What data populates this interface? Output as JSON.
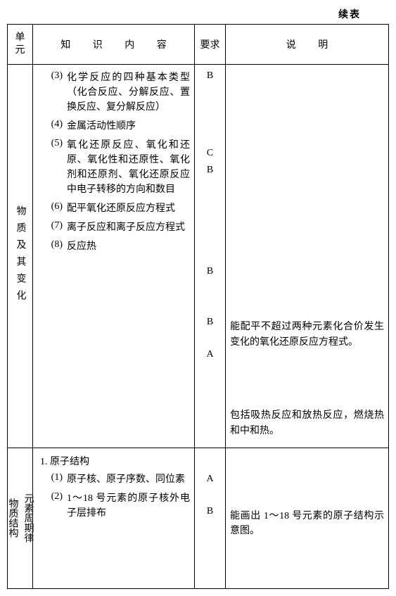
{
  "continuation_label": "续表",
  "columns": {
    "unit": "单元",
    "content": "知 识 内 容",
    "requirement": "要求",
    "note": "说 明"
  },
  "unit1": {
    "name": "物质及其变化",
    "items": [
      {
        "num": "(3)",
        "text": "化学反应的四种基本类型（化合反应、分解反应、置换反应、复分解反应）",
        "req": "B",
        "note": ""
      },
      {
        "num": "(4)",
        "text": "金属活动性顺序",
        "req": "C",
        "note": ""
      },
      {
        "num": "(5)",
        "text": "氧化还原反应、氧化和还原、氧化性和还原性、氧化剂和还原剂、氧化还原反应中电子转移的方向和数目",
        "req": "B",
        "note": ""
      },
      {
        "num": "(6)",
        "text": "配平氧化还原反应方程式",
        "req": "B",
        "note": "能配平不超过两种元素化合价发生变化的氧化还原反应方程式。"
      },
      {
        "num": "(7)",
        "text": "离子反应和离子反应方程式",
        "req": "B",
        "note": ""
      },
      {
        "num": "(8)",
        "text": "反应热",
        "req": "A",
        "note": "包括吸热反应和放热反应，燃烧热和中和热。"
      }
    ],
    "req_heights": [
      110,
      24,
      144,
      72,
      46,
      20
    ],
    "note_heights": [
      350,
      72,
      46,
      40
    ]
  },
  "unit2": {
    "name_outer": "物质结构",
    "name_inner": "元素周期律",
    "section": "1. 原子结构",
    "items": [
      {
        "num": "(1)",
        "text": "原子核、原子序数、同位素",
        "req": "A",
        "note": ""
      },
      {
        "num": "(2)",
        "text": "1～18 号元素的原子核外电子层排布",
        "req": "B",
        "note": "能画出 1～18 号元素的原子结构示意图。"
      }
    ],
    "req_heights": [
      28,
      46,
      60
    ],
    "note_heights": [
      74,
      80
    ]
  }
}
